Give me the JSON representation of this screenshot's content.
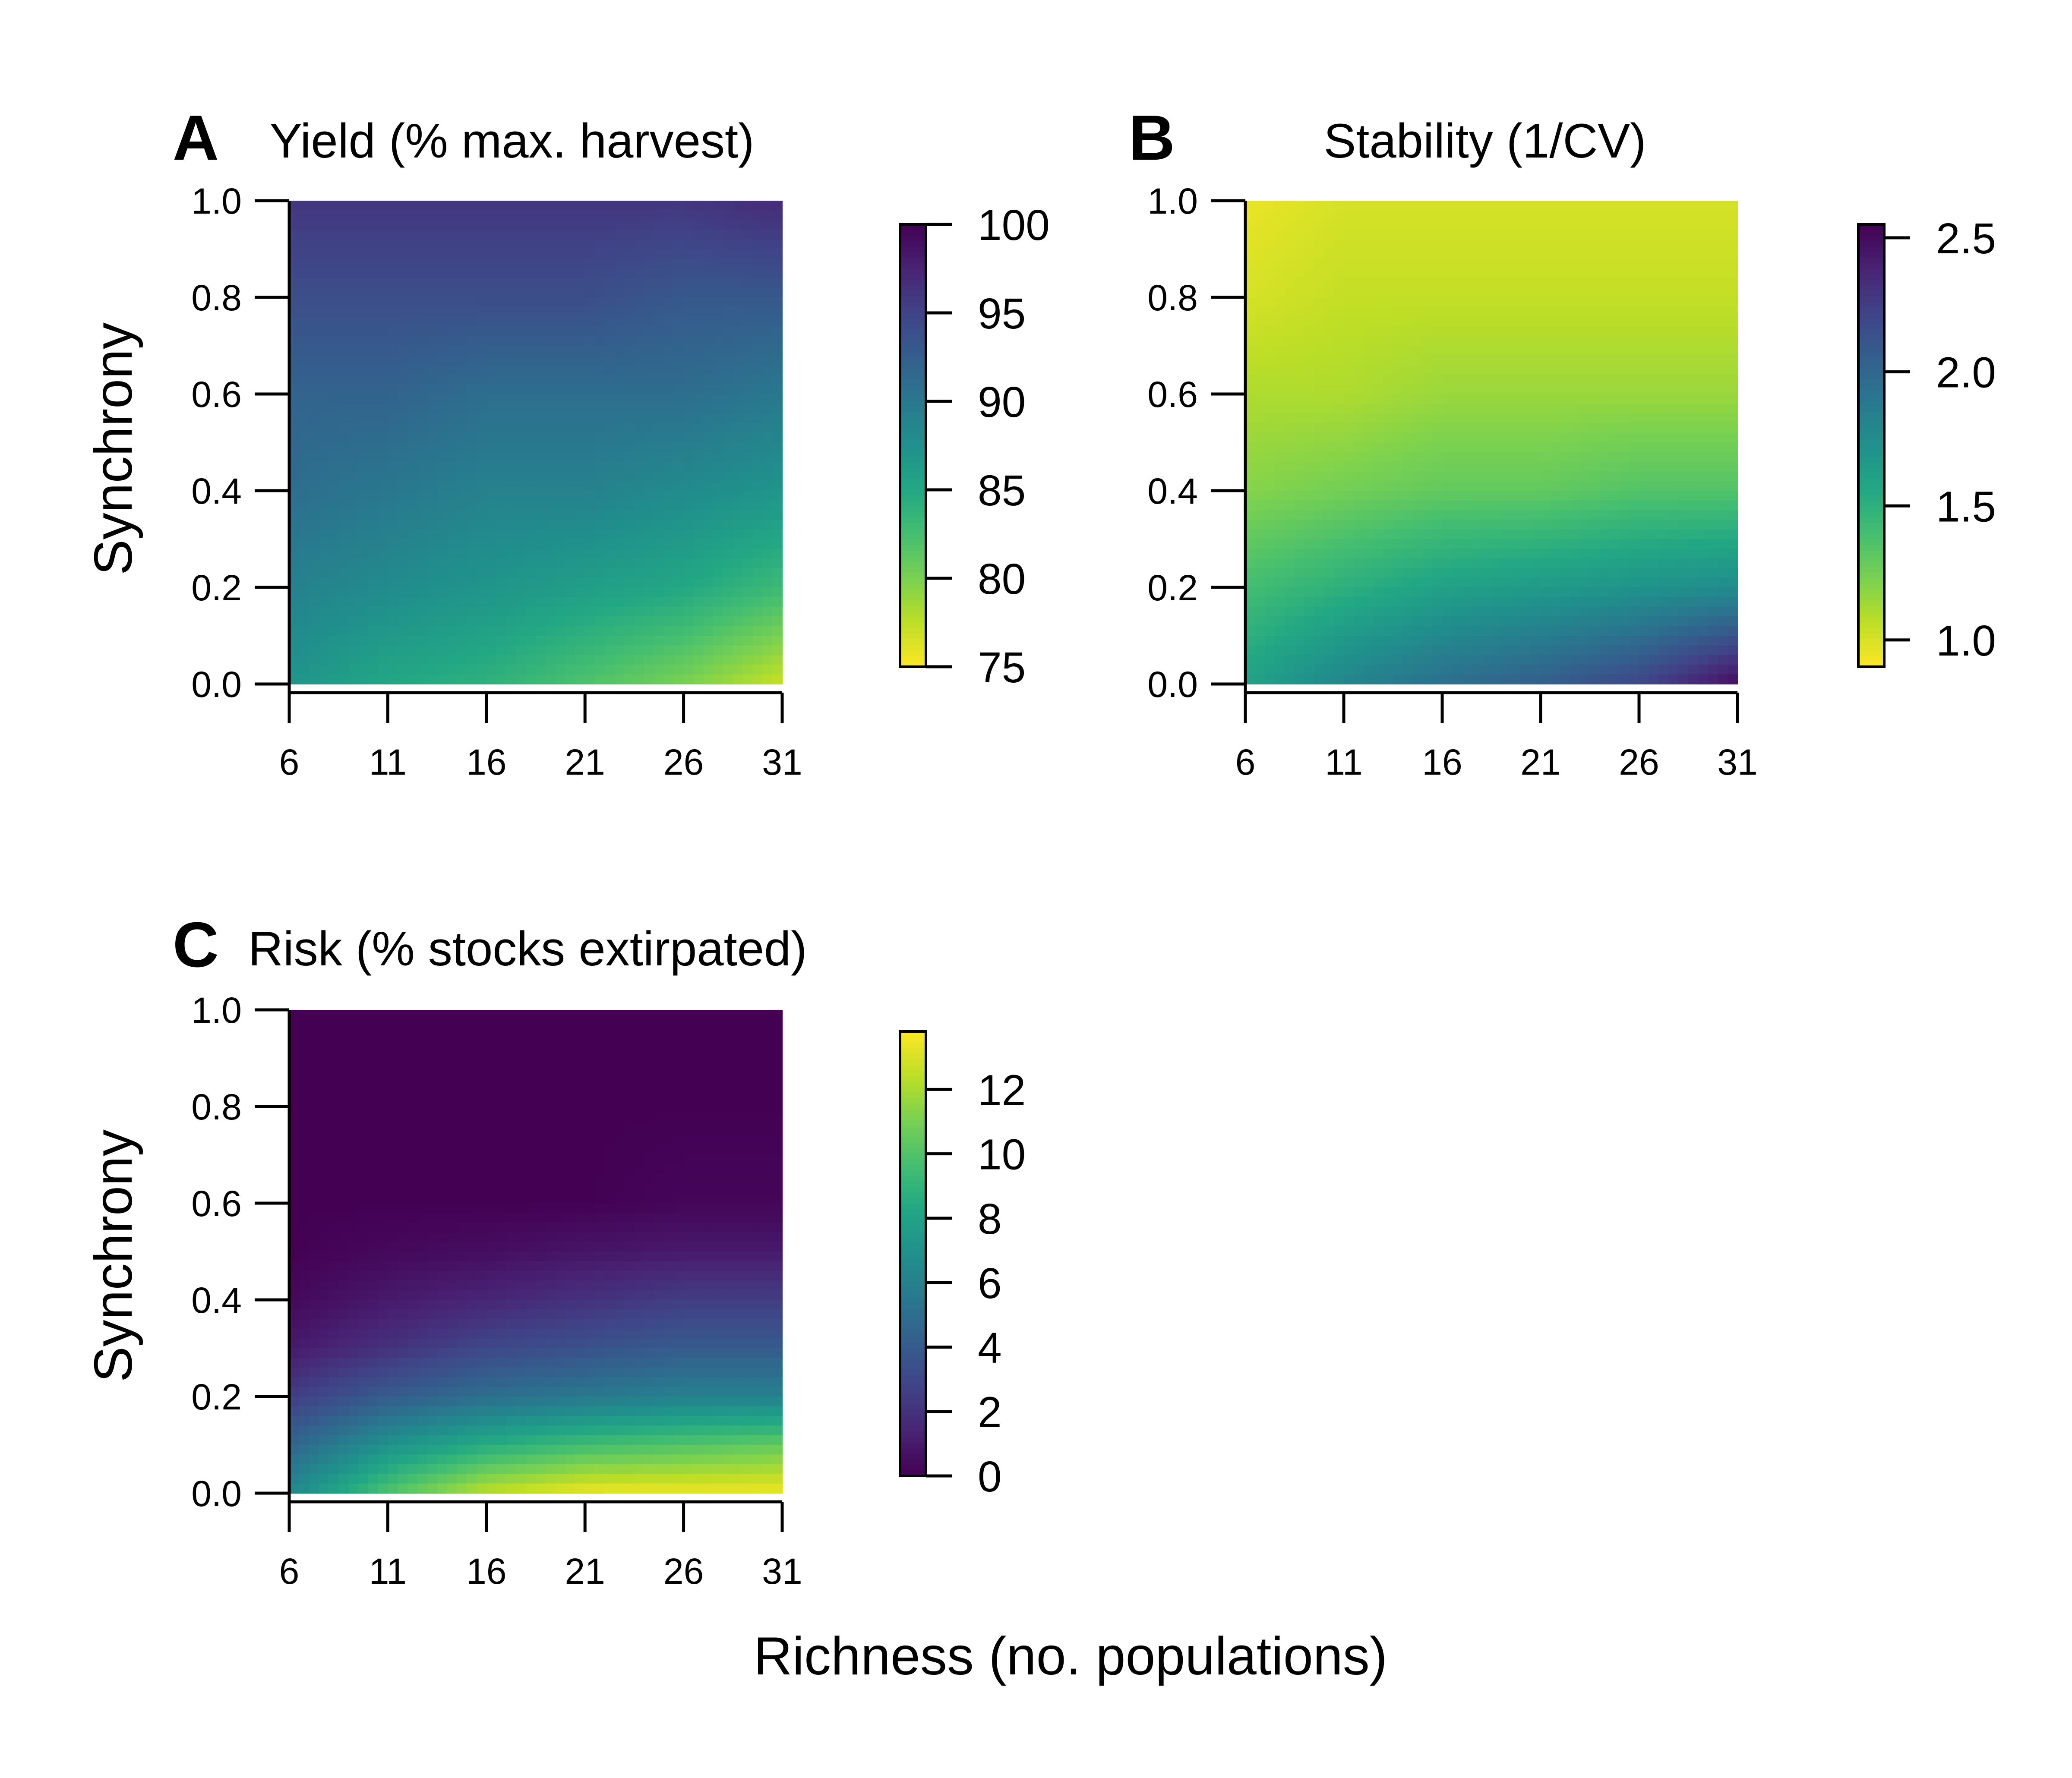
{
  "chart_data": [
    {
      "type": "heatmap",
      "panel_label": "A",
      "title": "Yield (% max. harvest)",
      "xlabel": "",
      "ylabel": "Synchrony",
      "xlim": [
        6,
        31
      ],
      "ylim": [
        0,
        1
      ],
      "x_ticks": [
        "6",
        "11",
        "16",
        "21",
        "26",
        "31"
      ],
      "y_ticks": [
        "0.0",
        "0.2",
        "0.4",
        "0.6",
        "0.8",
        "1.0"
      ],
      "x": [
        6,
        11,
        16,
        21,
        26,
        31
      ],
      "y": [
        0.0,
        0.2,
        0.4,
        0.6,
        0.8,
        1.0
      ],
      "z": [
        [
          87,
          85,
          84,
          82,
          80,
          77
        ],
        [
          89,
          88,
          87,
          86,
          85,
          83
        ],
        [
          91,
          90,
          89,
          89,
          88,
          87
        ],
        [
          92,
          92,
          91,
          91,
          91,
          90
        ],
        [
          94,
          94,
          94,
          94,
          93,
          93
        ],
        [
          96,
          96,
          96,
          96,
          96,
          97
        ]
      ],
      "colorbar": {
        "min": 75,
        "max": 100,
        "ticks": [
          "75",
          "80",
          "85",
          "90",
          "95",
          "100"
        ],
        "reversed": true
      }
    },
    {
      "type": "heatmap",
      "panel_label": "B",
      "title": "Stability (1/CV)",
      "xlabel": "",
      "ylabel": "",
      "xlim": [
        6,
        31
      ],
      "ylim": [
        0,
        1
      ],
      "x_ticks": [
        "6",
        "11",
        "16",
        "21",
        "26",
        "31"
      ],
      "y_ticks": [
        "0.0",
        "0.2",
        "0.4",
        "0.6",
        "0.8",
        "1.0"
      ],
      "x": [
        6,
        11,
        16,
        21,
        26,
        31
      ],
      "y": [
        0.0,
        0.2,
        0.4,
        0.6,
        0.8,
        1.0
      ],
      "z": [
        [
          1.6,
          1.8,
          1.95,
          2.05,
          2.2,
          2.5
        ],
        [
          1.4,
          1.5,
          1.6,
          1.65,
          1.7,
          1.75
        ],
        [
          1.2,
          1.25,
          1.3,
          1.3,
          1.35,
          1.35
        ],
        [
          1.1,
          1.1,
          1.15,
          1.15,
          1.15,
          1.15
        ],
        [
          1.0,
          1.05,
          1.05,
          1.05,
          1.05,
          1.05
        ],
        [
          0.95,
          1.0,
          1.0,
          1.0,
          1.0,
          1.0
        ]
      ],
      "colorbar": {
        "min": 0.9,
        "max": 2.55,
        "ticks": [
          "1.0",
          "1.5",
          "2.0",
          "2.5"
        ],
        "reversed": true
      }
    },
    {
      "type": "heatmap",
      "panel_label": "C",
      "title": "Risk (% stocks extirpated)",
      "xlabel": "Richness (no. populations)",
      "ylabel": "Synchrony",
      "xlim": [
        6,
        31
      ],
      "ylim": [
        0,
        1
      ],
      "x_ticks": [
        "6",
        "11",
        "16",
        "21",
        "26",
        "31"
      ],
      "y_ticks": [
        "0.0",
        "0.2",
        "0.4",
        "0.6",
        "0.8",
        "1.0"
      ],
      "x": [
        6,
        11,
        16,
        21,
        26,
        31
      ],
      "y": [
        0.0,
        0.1,
        0.2,
        0.3,
        0.4,
        0.5,
        0.6,
        0.8,
        1.0
      ],
      "z": [
        [
          6.5,
          10.0,
          12.5,
          13.5,
          13.5,
          13.5
        ],
        [
          4.5,
          7.0,
          8.5,
          9.5,
          10.0,
          10.5
        ],
        [
          2.5,
          4.0,
          5.0,
          5.5,
          6.0,
          6.0
        ],
        [
          1.0,
          2.0,
          3.0,
          3.5,
          4.0,
          4.0
        ],
        [
          0.3,
          1.0,
          1.5,
          2.0,
          2.5,
          2.5
        ],
        [
          0.0,
          0.3,
          0.5,
          0.8,
          1.0,
          1.0
        ],
        [
          0.0,
          0.0,
          0.0,
          0.0,
          0.2,
          0.2
        ],
        [
          0.0,
          0.0,
          0.0,
          0.0,
          0.0,
          0.0
        ],
        [
          0.0,
          0.0,
          0.0,
          0.0,
          0.0,
          0.0
        ]
      ],
      "colorbar": {
        "min": 0,
        "max": 13.8,
        "ticks": [
          "0",
          "2",
          "4",
          "6",
          "8",
          "10",
          "12"
        ],
        "reversed": false
      }
    }
  ]
}
